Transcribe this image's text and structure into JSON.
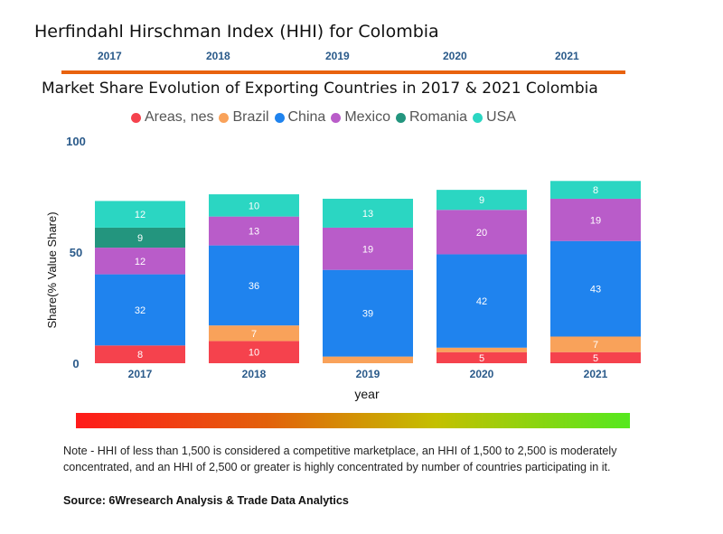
{
  "header": {
    "title": "Herfindahl Hirschman Index (HHI) for Colombia",
    "years": [
      "2017",
      "2018",
      "2019",
      "2020",
      "2021"
    ]
  },
  "colors": {
    "rule": "#e8620e",
    "year_label": "#2a5a8a"
  },
  "chart_data": {
    "type": "bar",
    "stacked": true,
    "title": "Market Share Evolution of Exporting Countries in 2017 & 2021 Colombia",
    "xlabel": "year",
    "ylabel": "Share(% Value Share)",
    "ylim": [
      0,
      100
    ],
    "yticks": [
      0,
      50,
      100
    ],
    "legend_position": "top",
    "categories": [
      "2017",
      "2018",
      "2019",
      "2020",
      "2021"
    ],
    "series": [
      {
        "name": "Areas, nes",
        "color": "#f5424d",
        "values": [
          8,
          10,
          null,
          5,
          5
        ],
        "labels": [
          "8",
          "10",
          "",
          "5",
          "5"
        ]
      },
      {
        "name": "Brazil",
        "color": "#f9a25a",
        "values": [
          null,
          7,
          3,
          2,
          7
        ],
        "labels": [
          "",
          "7",
          "",
          "",
          "7"
        ]
      },
      {
        "name": "China",
        "color": "#1f83ee",
        "values": [
          32,
          36,
          39,
          42,
          43
        ],
        "labels": [
          "32",
          "36",
          "39",
          "42",
          "43"
        ]
      },
      {
        "name": "Mexico",
        "color": "#b95cc9",
        "values": [
          12,
          13,
          19,
          20,
          19
        ],
        "labels": [
          "12",
          "13",
          "19",
          "20",
          "19"
        ]
      },
      {
        "name": "Romania",
        "color": "#23957e",
        "values": [
          9,
          null,
          null,
          null,
          null
        ],
        "labels": [
          "9",
          "",
          "",
          "",
          ""
        ]
      },
      {
        "name": "USA",
        "color": "#2bd6c2",
        "values": [
          12,
          10,
          13,
          9,
          8
        ],
        "labels": [
          "12",
          "10",
          "13",
          "9",
          "8"
        ]
      }
    ]
  },
  "footer": {
    "note": "Note - HHI of less than 1,500 is considered a competitive marketplace, an HHI of 1,500 to 2,500 is moderately concentrated, and an HHI of 2,500 or greater is highly concentrated by number of countries participating in it.",
    "source": "Source: 6Wresearch Analysis & Trade Data Analytics"
  }
}
